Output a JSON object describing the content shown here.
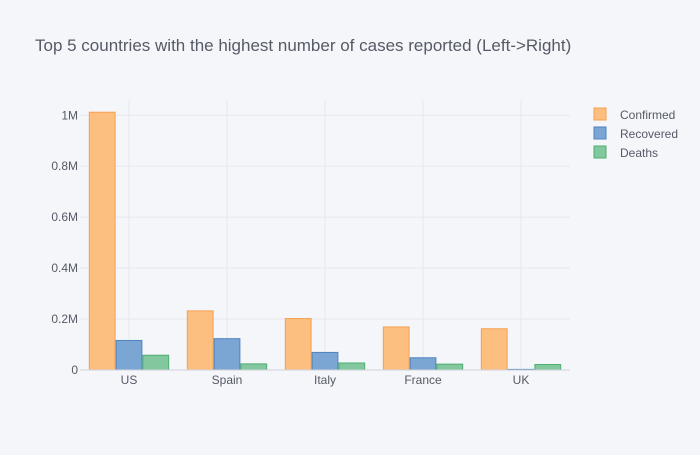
{
  "chart_data": {
    "type": "bar",
    "title": "Top 5 countries with the highest number of cases reported (Left->Right)",
    "categories": [
      "US",
      "Spain",
      "Italy",
      "France",
      "UK"
    ],
    "series": [
      {
        "name": "Confirmed",
        "values": [
          1012000,
          232000,
          202000,
          169000,
          162000
        ],
        "color": "#fdbf80",
        "stroke": "#f5a04e"
      },
      {
        "name": "Recovered",
        "values": [
          116000,
          123000,
          69000,
          48000,
          1000
        ],
        "color": "#7ba5d3",
        "stroke": "#4f84bf"
      },
      {
        "name": "Deaths",
        "values": [
          58000,
          24000,
          27500,
          23000,
          21500
        ],
        "color": "#82c79d",
        "stroke": "#4daf70"
      }
    ],
    "ylim": [
      0,
      1060000
    ],
    "yticks": [
      {
        "value": 0,
        "label": "0"
      },
      {
        "value": 200000,
        "label": "0.2M"
      },
      {
        "value": 400000,
        "label": "0.4M"
      },
      {
        "value": 600000,
        "label": "0.6M"
      },
      {
        "value": 800000,
        "label": "0.8M"
      },
      {
        "value": 1000000,
        "label": "1M"
      }
    ],
    "grid": true,
    "legend_position": "top-right"
  }
}
